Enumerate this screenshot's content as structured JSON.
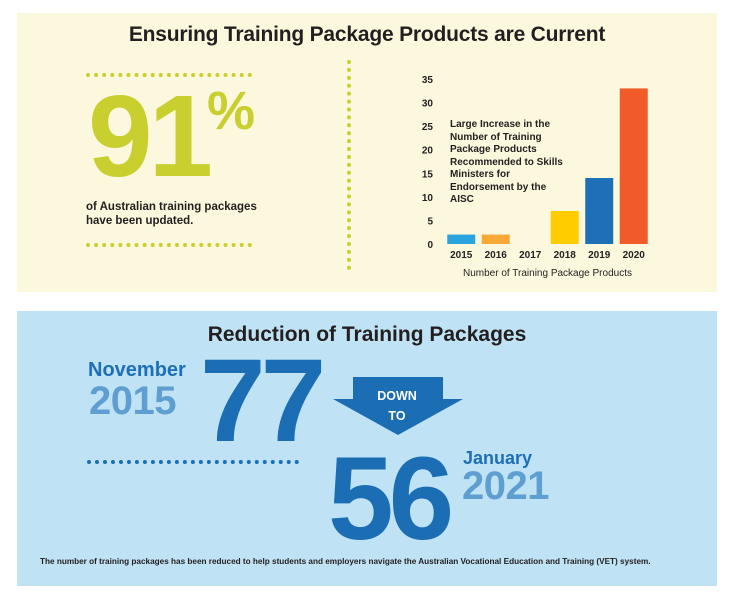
{
  "top": {
    "title": "Ensuring Training Package Products are Current",
    "stat_value": "91",
    "stat_unit": "%",
    "stat_caption": "of Australian training packages have been updated."
  },
  "chart_data": {
    "type": "bar",
    "title": "",
    "annotation": "Large Increase in the Number of Training Package Products Recommended to Skills Ministers for Endorsement by the AISC",
    "categories": [
      "2015",
      "2016",
      "2017",
      "2018",
      "2019",
      "2020"
    ],
    "values": [
      2,
      2,
      0,
      7,
      14,
      33
    ],
    "colors": [
      "#2aa3df",
      "#f7a837",
      "#cccccc",
      "#ffcc00",
      "#1e6fb6",
      "#f15a29"
    ],
    "xlabel": "Number of Training Package Products",
    "ylabel": "",
    "ylim": [
      0,
      35
    ],
    "yticks": [
      "0",
      "5",
      "10",
      "15",
      "20",
      "25",
      "30",
      "35"
    ],
    "grid": false
  },
  "bottom": {
    "title": "Reduction of Training Packages",
    "from_month": "November",
    "from_year": "2015",
    "from_value": "77",
    "arrow_line1": "DOWN",
    "arrow_line2": "TO",
    "to_value": "56",
    "to_month": "January",
    "to_year": "2021",
    "footnote": "The number of training packages has been reduced to help students and employers navigate the Australian Vocational Education and Training (VET) system."
  }
}
